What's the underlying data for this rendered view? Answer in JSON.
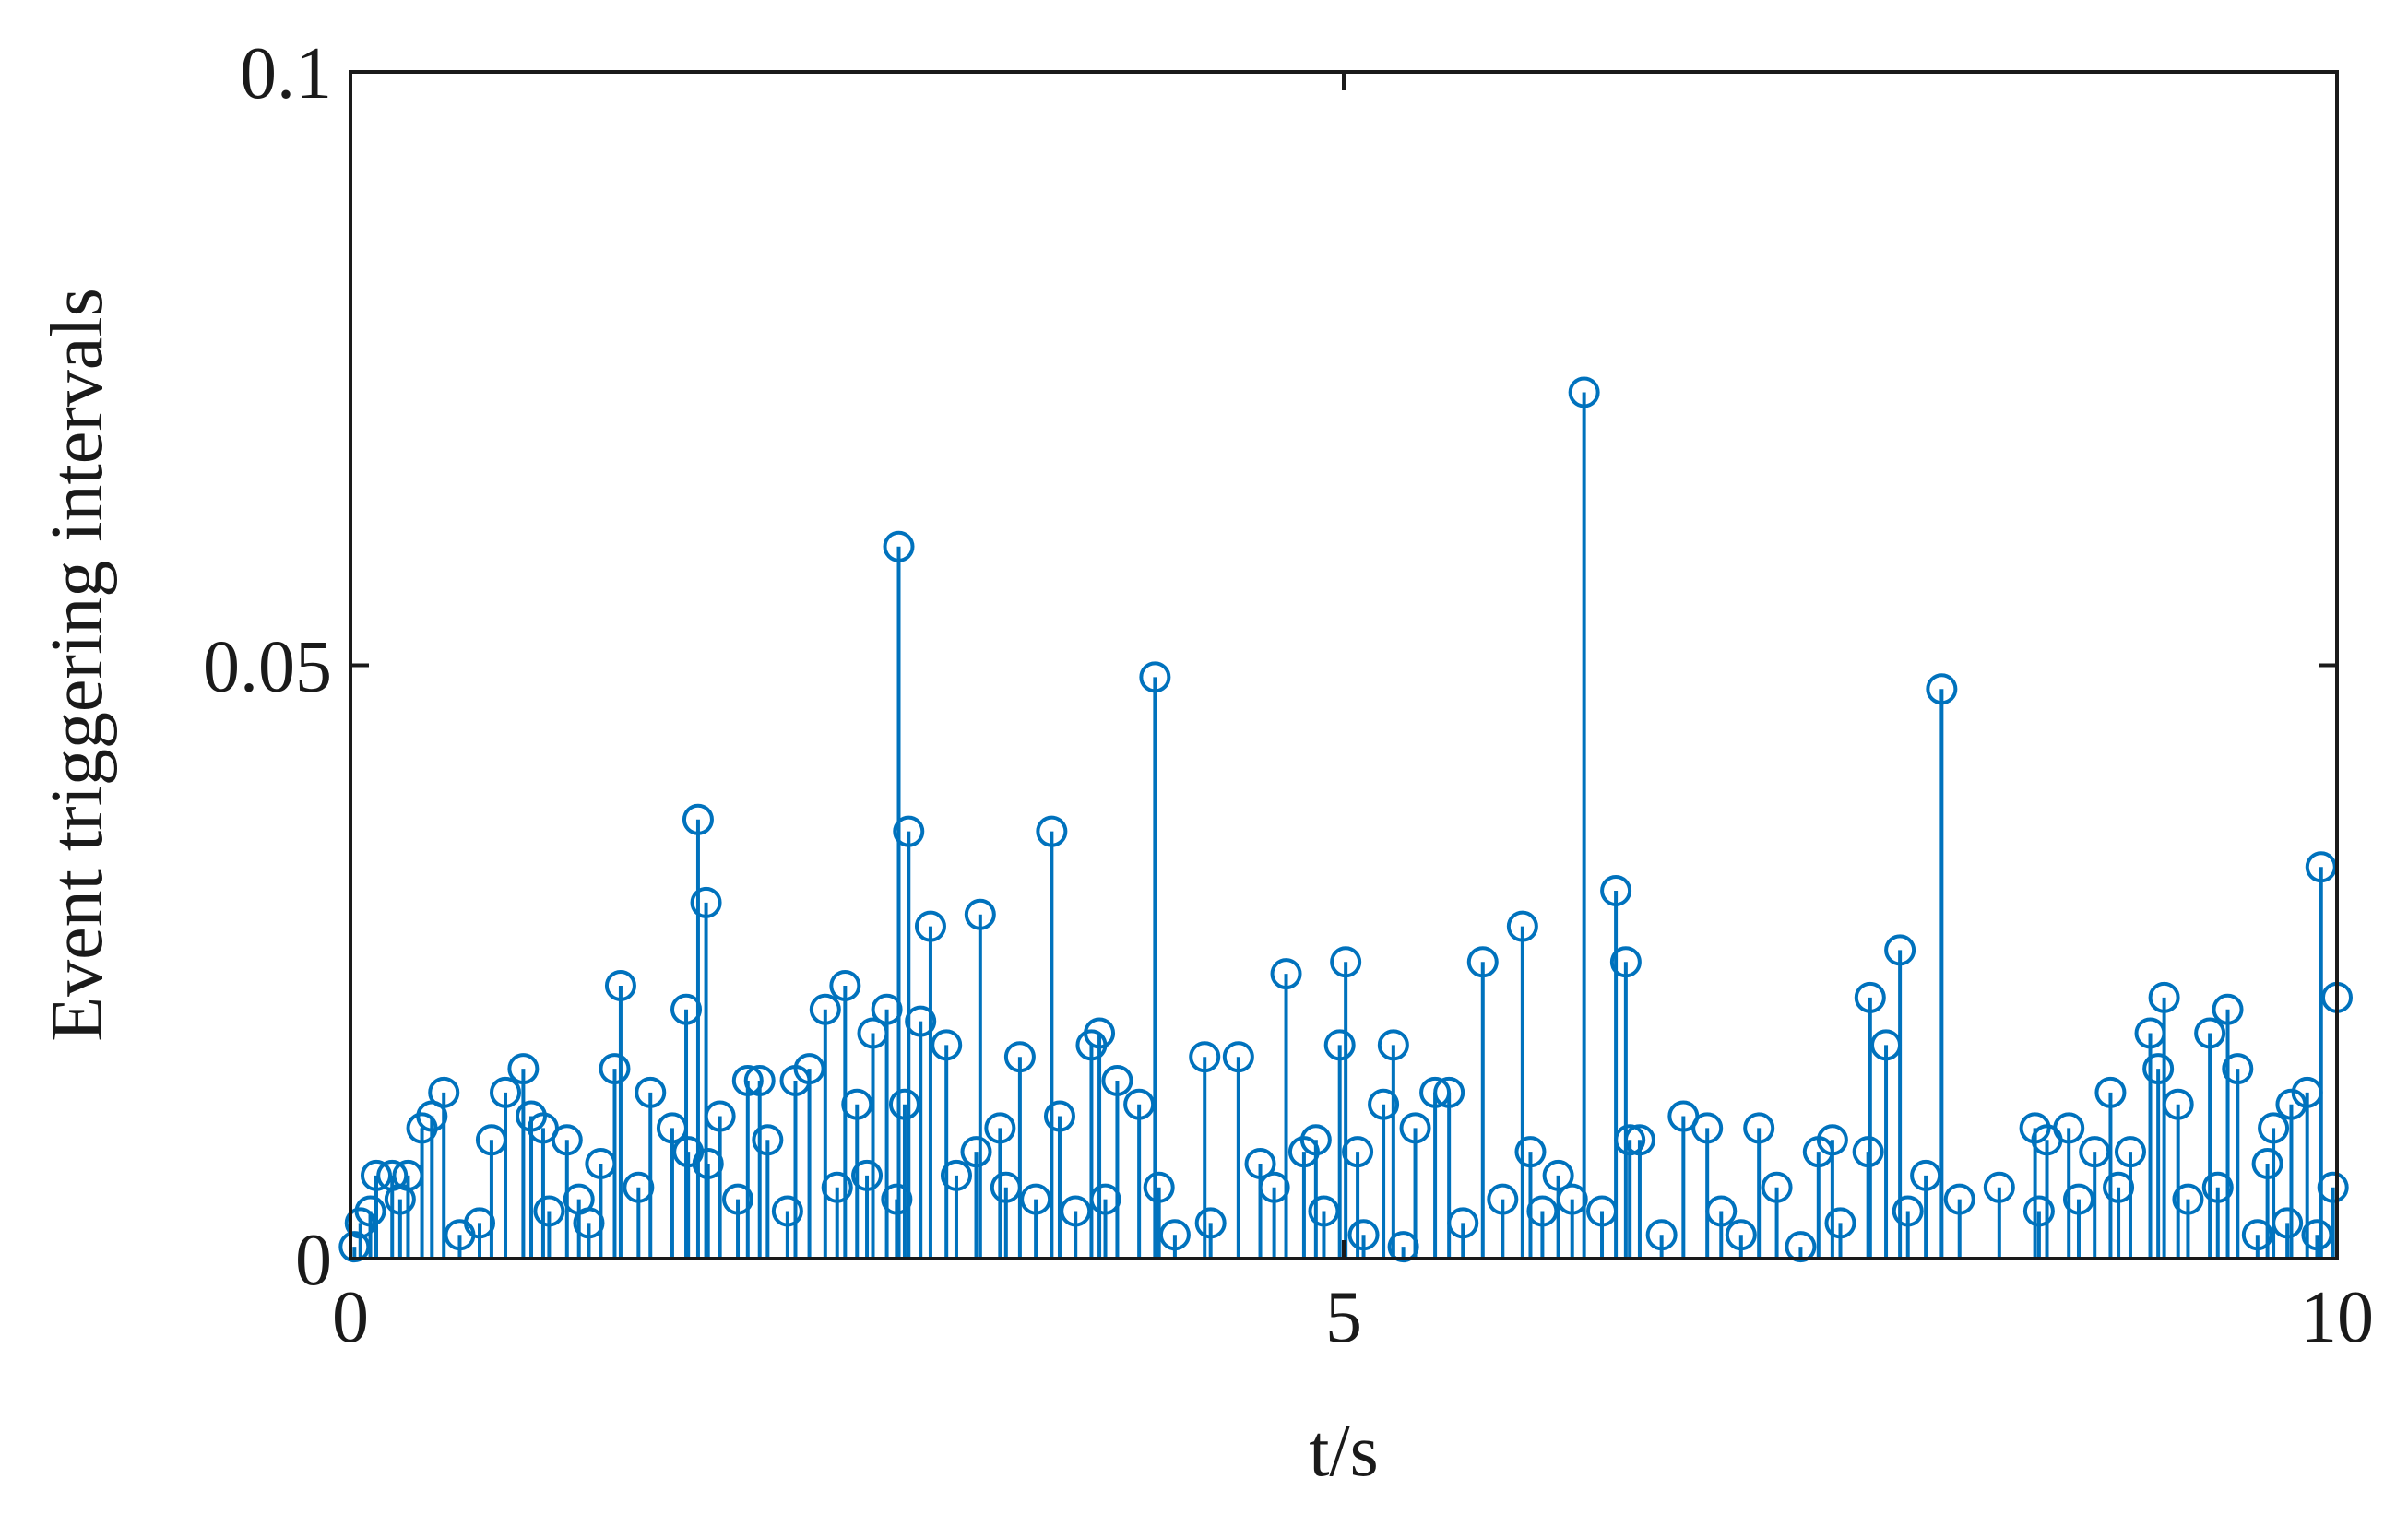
{
  "chart_data": {
    "type": "stem",
    "xlabel": "t/s",
    "ylabel": "Event triggering intervals",
    "color": "#0072BD",
    "xlim": [
      0,
      10
    ],
    "ylim": [
      0,
      0.1
    ],
    "xticks": [
      0,
      5,
      10
    ],
    "yticks": [
      0,
      0.05,
      0.1
    ],
    "x": [
      0.02,
      0.05,
      0.1,
      0.13,
      0.21,
      0.25,
      0.29,
      0.36,
      0.41,
      0.47,
      0.55,
      0.65,
      0.71,
      0.78,
      0.87,
      0.91,
      0.97,
      1.0,
      1.09,
      1.15,
      1.2,
      1.26,
      1.33,
      1.36,
      1.45,
      1.51,
      1.62,
      1.69,
      1.7,
      1.75,
      1.79,
      1.8,
      1.86,
      1.95,
      2.0,
      2.06,
      2.1,
      2.2,
      2.24,
      2.31,
      2.39,
      2.45,
      2.49,
      2.55,
      2.6,
      2.63,
      2.7,
      2.75,
      2.76,
      2.79,
      2.81,
      2.87,
      2.92,
      3.0,
      3.05,
      3.15,
      3.17,
      3.27,
      3.3,
      3.37,
      3.45,
      3.53,
      3.57,
      3.65,
      3.73,
      3.77,
      3.8,
      3.86,
      3.97,
      4.05,
      4.07,
      4.15,
      4.3,
      4.33,
      4.47,
      4.58,
      4.65,
      4.71,
      4.8,
      4.86,
      4.9,
      4.98,
      5.01,
      5.07,
      5.1,
      5.2,
      5.25,
      5.3,
      5.36,
      5.46,
      5.53,
      5.6,
      5.7,
      5.8,
      5.9,
      5.94,
      6.0,
      6.08,
      6.15,
      6.21,
      6.3,
      6.37,
      6.42,
      6.44,
      6.49,
      6.6,
      6.71,
      6.83,
      6.9,
      7.0,
      7.09,
      7.18,
      7.3,
      7.39,
      7.46,
      7.5,
      7.64,
      7.65,
      7.73,
      7.8,
      7.84,
      7.93,
      8.01,
      8.1,
      8.3,
      8.48,
      8.5,
      8.54,
      8.65,
      8.7,
      8.78,
      8.86,
      8.9,
      8.96,
      9.06,
      9.1,
      9.13,
      9.2,
      9.25,
      9.36,
      9.4,
      9.45,
      9.5,
      9.6,
      9.65,
      9.68,
      9.75,
      9.77,
      9.85,
      9.9,
      9.92,
      9.98,
      10.0
    ],
    "values": [
      0.001,
      0.003,
      0.004,
      0.007,
      0.007,
      0.005,
      0.007,
      0.011,
      0.012,
      0.014,
      0.002,
      0.003,
      0.01,
      0.014,
      0.016,
      0.012,
      0.011,
      0.004,
      0.01,
      0.005,
      0.003,
      0.008,
      0.016,
      0.023,
      0.006,
      0.014,
      0.011,
      0.021,
      0.009,
      0.037,
      0.03,
      0.008,
      0.012,
      0.005,
      0.015,
      0.015,
      0.01,
      0.004,
      0.015,
      0.016,
      0.021,
      0.006,
      0.023,
      0.013,
      0.007,
      0.019,
      0.021,
      0.005,
      0.06,
      0.013,
      0.036,
      0.02,
      0.028,
      0.018,
      0.007,
      0.009,
      0.029,
      0.011,
      0.006,
      0.017,
      0.005,
      0.036,
      0.012,
      0.004,
      0.018,
      0.019,
      0.005,
      0.015,
      0.013,
      0.049,
      0.006,
      0.002,
      0.017,
      0.003,
      0.017,
      0.008,
      0.006,
      0.024,
      0.009,
      0.01,
      0.004,
      0.018,
      0.025,
      0.009,
      0.002,
      0.013,
      0.018,
      0.001,
      0.011,
      0.014,
      0.014,
      0.003,
      0.025,
      0.005,
      0.028,
      0.009,
      0.004,
      0.007,
      0.005,
      0.073,
      0.004,
      0.031,
      0.025,
      0.01,
      0.01,
      0.002,
      0.012,
      0.011,
      0.004,
      0.002,
      0.011,
      0.006,
      0.001,
      0.009,
      0.01,
      0.003,
      0.009,
      0.022,
      0.018,
      0.026,
      0.004,
      0.007,
      0.048,
      0.005,
      0.006,
      0.011,
      0.004,
      0.01,
      0.011,
      0.005,
      0.009,
      0.014,
      0.006,
      0.009,
      0.019,
      0.016,
      0.022,
      0.013,
      0.005,
      0.019,
      0.006,
      0.021,
      0.016,
      0.002,
      0.008,
      0.011,
      0.003,
      0.013,
      0.014,
      0.002,
      0.033,
      0.006,
      0.022
    ]
  }
}
